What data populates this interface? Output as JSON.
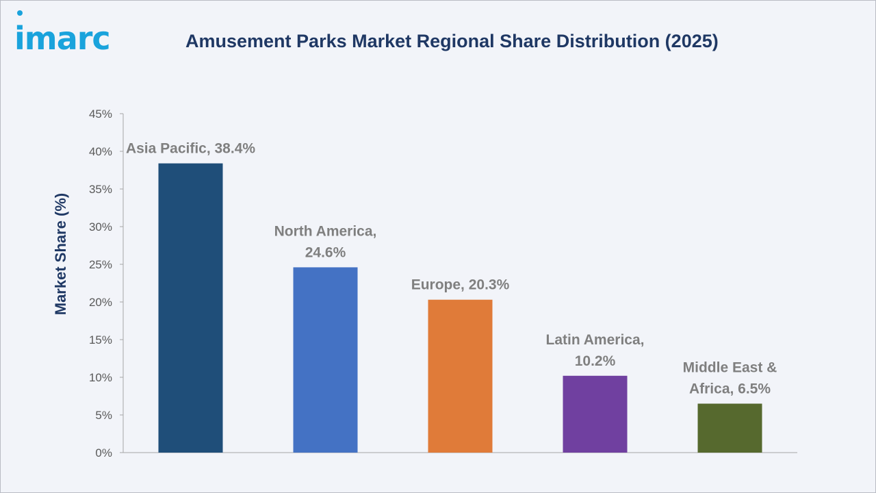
{
  "brand": {
    "logo_text": "imarc"
  },
  "chart_data": {
    "type": "bar",
    "title": "Amusement Parks Market Regional Share Distribution (2025)",
    "ylabel": "Market Share (%)",
    "xlabel": "",
    "ylim": [
      0,
      45
    ],
    "yticks": [
      "0%",
      "5%",
      "10%",
      "15%",
      "20%",
      "25%",
      "30%",
      "35%",
      "40%",
      "45%"
    ],
    "categories": [
      "Asia Pacific",
      "North America",
      "Europe",
      "Latin America",
      "Middle East & Africa"
    ],
    "values": [
      38.4,
      24.6,
      20.3,
      10.2,
      6.5
    ],
    "data_labels": [
      [
        "Asia Pacific, 38.4%"
      ],
      [
        "North America,",
        "24.6%"
      ],
      [
        "Europe, 20.3%"
      ],
      [
        "Latin America,",
        "10.2%"
      ],
      [
        "Middle East &",
        "Africa, 6.5%"
      ]
    ],
    "colors": [
      "#1f4e79",
      "#4472c4",
      "#e07b39",
      "#7040a0",
      "#56692e"
    ],
    "grid": false,
    "legend": "none"
  }
}
